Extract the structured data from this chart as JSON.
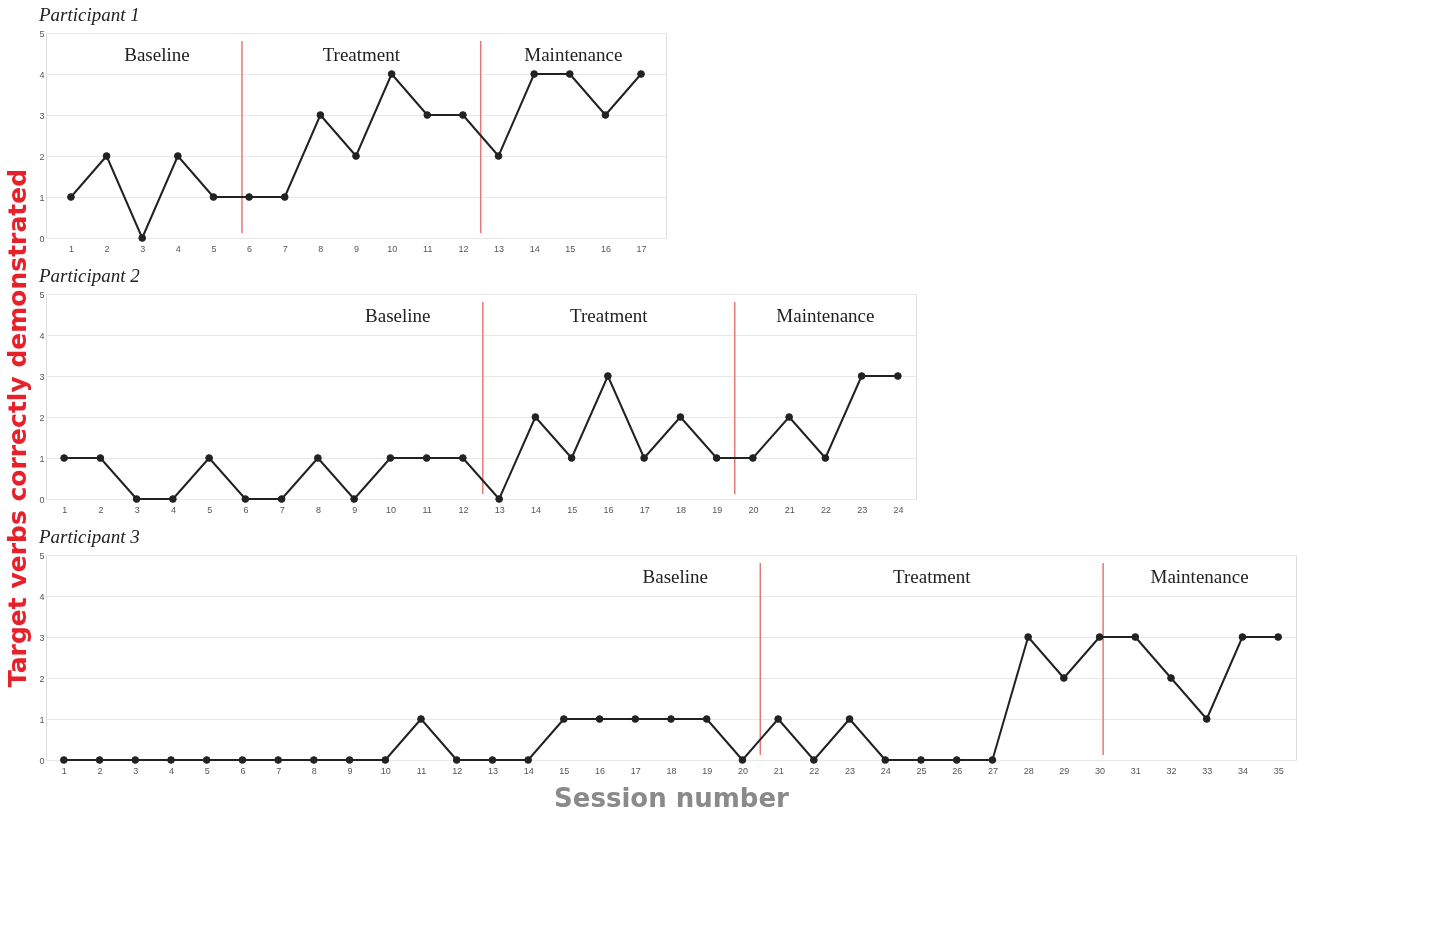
{
  "chart_data": [
    {
      "type": "line",
      "title": "Participant 1",
      "x": [
        1,
        2,
        3,
        4,
        5,
        6,
        7,
        8,
        9,
        10,
        11,
        12,
        13,
        14,
        15,
        16,
        17
      ],
      "series": [
        {
          "color": "#222222",
          "values": [
            1,
            2,
            0,
            2,
            1,
            1,
            1,
            3,
            2,
            4,
            3,
            3,
            2,
            4,
            4,
            3,
            4
          ]
        }
      ],
      "xlim": [
        0.3,
        17.7
      ],
      "xticks": [
        1,
        2,
        3,
        4,
        5,
        6,
        7,
        8,
        9,
        10,
        11,
        12,
        13,
        14,
        15,
        16,
        17
      ],
      "ylim": [
        0,
        5
      ],
      "yticks": [
        0,
        1,
        2,
        3,
        4,
        5
      ],
      "ref_lines": [
        {
          "axis": "x",
          "value": 5.8,
          "color": "#e87878"
        },
        {
          "axis": "x",
          "value": 12.5,
          "color": "#e87878"
        }
      ],
      "annotations": [
        "Baseline",
        "Treatment",
        "Maintenance"
      ],
      "grid": "y",
      "marker": "circle",
      "line_style": "solid"
    },
    {
      "type": "line",
      "title": "Participant 2",
      "ylabel": "Target verbs correctly demonstrated",
      "x": [
        1,
        2,
        3,
        4,
        5,
        6,
        7,
        8,
        9,
        10,
        11,
        12,
        13,
        14,
        15,
        16,
        17,
        18,
        19,
        20,
        21,
        22,
        23,
        24
      ],
      "series": [
        {
          "color": "#222222",
          "values": [
            1,
            1,
            0,
            0,
            1,
            0,
            0,
            1,
            0,
            1,
            1,
            1,
            0,
            2,
            1,
            3,
            1,
            2,
            1,
            1,
            2,
            1,
            3,
            3
          ]
        }
      ],
      "xlim": [
        0.5,
        24.5
      ],
      "xticks": [
        1,
        2,
        3,
        4,
        5,
        6,
        7,
        8,
        9,
        10,
        11,
        12,
        13,
        14,
        15,
        16,
        17,
        18,
        19,
        20,
        21,
        22,
        23,
        24
      ],
      "ylim": [
        0,
        5
      ],
      "yticks": [
        0,
        1,
        2,
        3,
        4,
        5
      ],
      "ref_lines": [
        {
          "axis": "x",
          "value": 12.55,
          "color": "#e87878"
        },
        {
          "axis": "x",
          "value": 19.5,
          "color": "#e87878"
        }
      ],
      "annotations": [
        "Baseline",
        "Treatment",
        "Maintenance"
      ],
      "grid": "y",
      "marker": "circle",
      "line_style": "solid"
    },
    {
      "type": "line",
      "title": "Participant 3",
      "xlabel": "Session number",
      "x": [
        1,
        2,
        3,
        4,
        5,
        6,
        7,
        8,
        9,
        10,
        11,
        12,
        13,
        14,
        15,
        16,
        17,
        18,
        19,
        20,
        21,
        22,
        23,
        24,
        25,
        26,
        27,
        28,
        29,
        30,
        31,
        32,
        33,
        34,
        35
      ],
      "series": [
        {
          "color": "#222222",
          "values": [
            0,
            0,
            0,
            0,
            0,
            0,
            0,
            0,
            0,
            0,
            1,
            0,
            0,
            0,
            1,
            1,
            1,
            1,
            1,
            0,
            1,
            0,
            1,
            0,
            0,
            0,
            0,
            3,
            2,
            3,
            3,
            2,
            1,
            3,
            3
          ]
        }
      ],
      "xlim": [
        0.5,
        35.5
      ],
      "xticks": [
        1,
        2,
        3,
        4,
        5,
        6,
        7,
        8,
        9,
        10,
        11,
        12,
        13,
        14,
        15,
        16,
        17,
        18,
        19,
        20,
        21,
        22,
        23,
        24,
        25,
        26,
        27,
        28,
        29,
        30,
        31,
        32,
        33,
        34,
        35
      ],
      "ylim": [
        0,
        5
      ],
      "yticks": [
        0,
        1,
        2,
        3,
        4,
        5
      ],
      "ref_lines": [
        {
          "axis": "x",
          "value": 20.5,
          "color": "#e87878"
        },
        {
          "axis": "x",
          "value": 30.1,
          "color": "#e87878"
        }
      ],
      "annotations": [
        "Baseline",
        "Treatment",
        "Maintenance"
      ],
      "grid": "y",
      "marker": "circle",
      "line_style": "solid"
    }
  ]
}
